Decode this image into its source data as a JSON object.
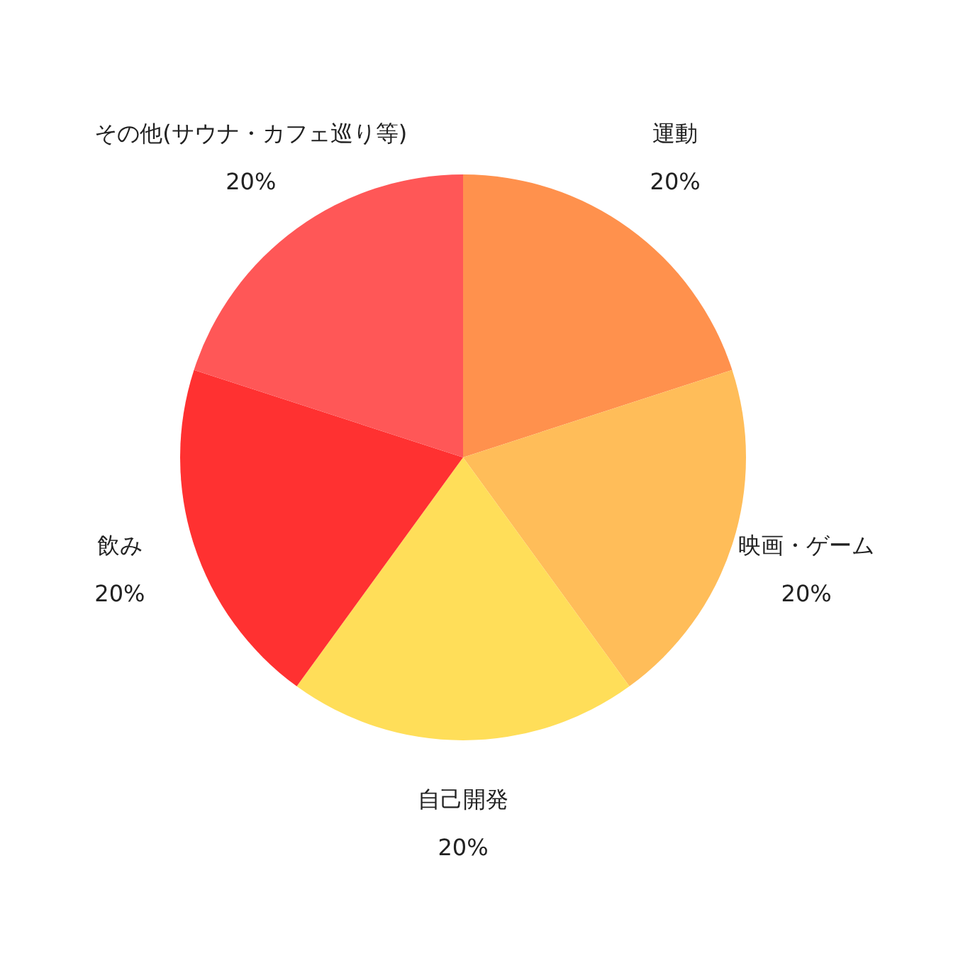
{
  "chart_data": {
    "type": "pie",
    "categories": [
      "運動",
      "映画・ゲーム",
      "自己開発",
      "飲み",
      "その他(サウナ・カフェ巡り等)"
    ],
    "values": [
      20,
      20,
      20,
      20,
      20
    ],
    "value_labels": [
      "20%",
      "20%",
      "20%",
      "20%",
      "20%"
    ],
    "colors": [
      "#ff914d",
      "#ffbd59",
      "#ffde59",
      "#ff3131",
      "#ff5757"
    ]
  }
}
